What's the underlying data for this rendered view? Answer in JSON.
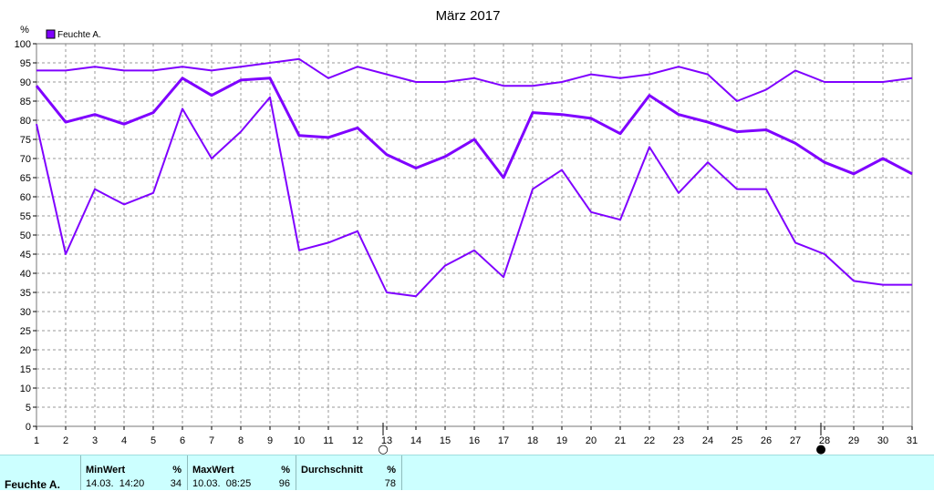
{
  "chart_data": {
    "type": "line",
    "title": "März 2017",
    "ylabel": "%",
    "ylim": [
      0,
      100
    ],
    "yticks": [
      0,
      5,
      10,
      15,
      20,
      25,
      30,
      35,
      40,
      45,
      50,
      55,
      60,
      65,
      70,
      75,
      80,
      85,
      90,
      95,
      100
    ],
    "grid": true,
    "legend_placement": "top-left",
    "legend": [
      {
        "label": "Feuchte A.",
        "color": "#7f00ff"
      }
    ],
    "x": [
      1,
      2,
      3,
      4,
      5,
      6,
      7,
      8,
      9,
      10,
      11,
      12,
      13,
      14,
      15,
      16,
      17,
      18,
      19,
      20,
      21,
      22,
      23,
      24,
      25,
      26,
      27,
      28,
      29,
      30,
      31
    ],
    "series": [
      {
        "role": "max",
        "color": "#7f00ff",
        "values": [
          93,
          93,
          94,
          93,
          93,
          94,
          93,
          94,
          95,
          96,
          91,
          94,
          92,
          90,
          90,
          91,
          89,
          89,
          90,
          92,
          91,
          92,
          94,
          92,
          85,
          88,
          93,
          90,
          90,
          90,
          91
        ]
      },
      {
        "role": "avg",
        "color": "#7f00ff",
        "values": [
          89,
          79.5,
          81.5,
          79,
          82,
          91,
          86.5,
          90.5,
          91,
          76,
          75.5,
          78,
          71,
          67.5,
          70.5,
          75,
          65,
          82,
          81.5,
          80.5,
          76.5,
          86.5,
          81.5,
          79.5,
          77,
          77.5,
          74,
          69,
          66,
          70,
          66
        ]
      },
      {
        "role": "min",
        "color": "#7f00ff",
        "values": [
          79,
          45,
          62,
          58,
          61,
          83,
          70,
          77,
          86,
          46,
          48,
          51,
          35,
          34,
          42,
          46,
          39,
          62,
          67,
          56,
          54,
          73,
          61,
          69,
          62,
          62,
          48,
          45,
          38,
          37,
          37
        ]
      }
    ],
    "moon_markers": [
      {
        "day": "13",
        "symbol": "○"
      },
      {
        "day": "28",
        "symbol": "●"
      }
    ]
  },
  "stats": {
    "row_label": "Feuchte A.",
    "min": {
      "header": "MinWert",
      "unit": "%",
      "datetime": "14.03.  14:20",
      "value": "34"
    },
    "max": {
      "header": "MaxWert",
      "unit": "%",
      "datetime": "10.03.  08:25",
      "value": "96"
    },
    "avg": {
      "header": "Durchschnitt",
      "unit": "%",
      "value": "78"
    }
  }
}
